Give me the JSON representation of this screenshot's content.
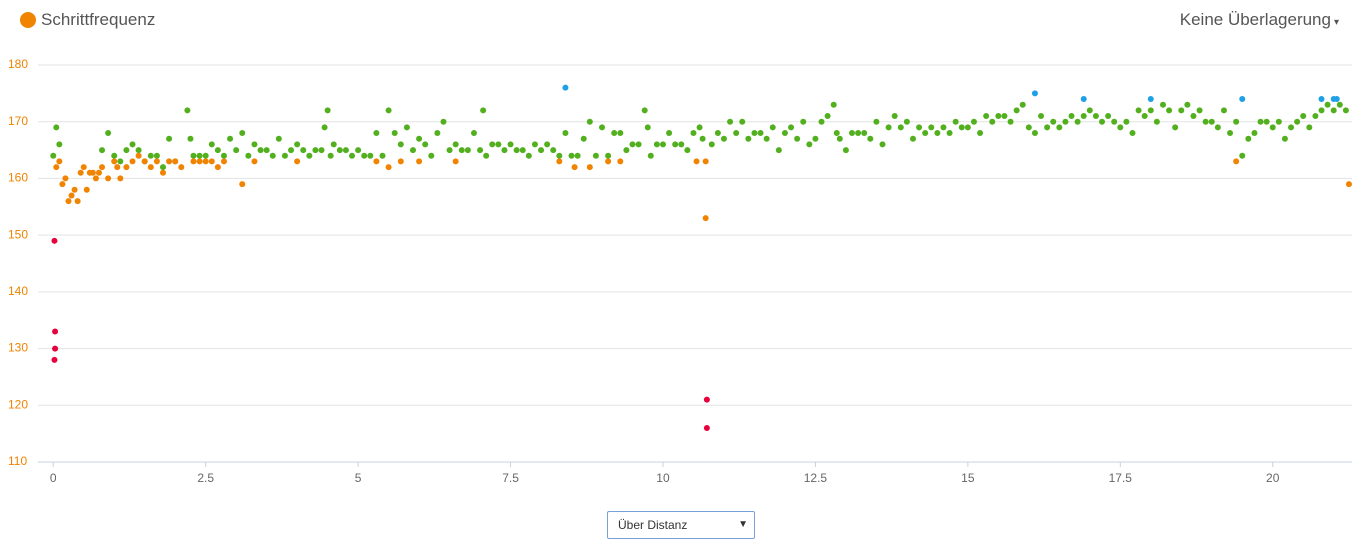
{
  "chart_data": {
    "type": "scatter",
    "legend": {
      "label": "Schrittfrequenz",
      "color": "#f08300"
    },
    "overlay_menu": "Keine Überlagerung",
    "x_mode_select": "Über Distanz",
    "xlim": [
      -0.25,
      21.3
    ],
    "ylim": [
      110,
      180
    ],
    "xticks": [
      0,
      2.5,
      5,
      7.5,
      10,
      12.5,
      15,
      17.5,
      20
    ],
    "yticks": [
      110,
      120,
      130,
      140,
      150,
      160,
      170,
      180
    ],
    "grid": true,
    "series": [
      {
        "color": "#52b01e",
        "x": [
          0,
          0.05,
          0.1,
          0.8,
          0.9,
          1.0,
          1.1,
          1.2,
          1.3,
          1.4,
          1.5,
          1.6,
          1.7,
          1.8,
          1.9,
          2.0,
          2.2,
          2.25,
          2.3,
          2.4,
          2.5,
          2.6,
          2.7,
          2.8,
          2.9,
          3.0,
          3.1,
          3.2,
          3.3,
          3.4,
          3.5,
          3.6,
          3.7,
          3.8,
          3.9,
          4.0,
          4.1,
          4.2,
          4.3,
          4.4,
          4.45,
          4.5,
          4.55,
          4.6,
          4.7,
          4.8,
          4.9,
          5.0,
          5.1,
          5.2,
          5.3,
          5.4,
          5.5,
          5.6,
          5.7,
          5.8,
          5.9,
          6.0,
          6.1,
          6.2,
          6.3,
          6.4,
          6.5,
          6.6,
          6.7,
          6.8,
          6.9,
          7.0,
          7.05,
          7.1,
          7.2,
          7.3,
          7.4,
          7.5,
          7.6,
          7.7,
          7.8,
          7.9,
          8.0,
          8.1,
          8.2,
          8.3,
          8.4,
          8.5,
          8.6,
          8.7,
          8.8,
          8.9,
          9.0,
          9.1,
          9.2,
          9.3,
          9.4,
          9.5,
          9.6,
          9.7,
          9.75,
          9.8,
          9.9,
          10.0,
          10.1,
          10.2,
          10.3,
          10.4,
          10.5,
          10.6,
          10.65,
          10.8,
          10.9,
          11.0,
          11.1,
          11.2,
          11.3,
          11.4,
          11.5,
          11.6,
          11.7,
          11.8,
          11.9,
          12.0,
          12.1,
          12.2,
          12.3,
          12.4,
          12.5,
          12.6,
          12.7,
          12.8,
          12.85,
          12.9,
          13.0,
          13.1,
          13.2,
          13.3,
          13.4,
          13.5,
          13.6,
          13.7,
          13.8,
          13.9,
          14.0,
          14.1,
          14.2,
          14.3,
          14.4,
          14.5,
          14.6,
          14.7,
          14.8,
          14.9,
          15.0,
          15.1,
          15.2,
          15.3,
          15.4,
          15.5,
          15.6,
          15.7,
          15.8,
          15.9,
          16.0,
          16.1,
          16.2,
          16.3,
          16.4,
          16.5,
          16.6,
          16.7,
          16.8,
          16.9,
          17.0,
          17.1,
          17.2,
          17.3,
          17.4,
          17.5,
          17.6,
          17.7,
          17.8,
          17.9,
          18.0,
          18.1,
          18.2,
          18.3,
          18.4,
          18.5,
          18.6,
          18.7,
          18.8,
          18.9,
          19.0,
          19.1,
          19.2,
          19.3,
          19.4,
          19.5,
          19.6,
          19.7,
          19.8,
          19.9,
          20.0,
          20.1,
          20.2,
          20.3,
          20.4,
          20.5,
          20.6,
          20.7,
          20.8,
          20.9,
          21.0,
          21.1,
          21.2
        ],
        "values": [
          164,
          169,
          166,
          165,
          168,
          164,
          163,
          165,
          166,
          165,
          163,
          164,
          164,
          162,
          167,
          163,
          172,
          167,
          164,
          164,
          164,
          166,
          165,
          164,
          167,
          165,
          168,
          164,
          166,
          165,
          165,
          164,
          167,
          164,
          165,
          166,
          165,
          164,
          165,
          165,
          169,
          172,
          164,
          166,
          165,
          165,
          164,
          165,
          164,
          164,
          168,
          164,
          172,
          168,
          166,
          169,
          165,
          167,
          166,
          164,
          168,
          170,
          165,
          166,
          165,
          165,
          168,
          165,
          172,
          164,
          166,
          166,
          165,
          166,
          165,
          165,
          164,
          166,
          165,
          166,
          165,
          164,
          168,
          164,
          164,
          167,
          170,
          164,
          169,
          164,
          168,
          168,
          165,
          166,
          166,
          172,
          169,
          164,
          166,
          166,
          168,
          166,
          166,
          165,
          168,
          169,
          167,
          166,
          168,
          167,
          170,
          168,
          170,
          167,
          168,
          168,
          167,
          169,
          165,
          168,
          169,
          167,
          170,
          166,
          167,
          170,
          171,
          173,
          168,
          167,
          165,
          168,
          168,
          168,
          167,
          170,
          166,
          169,
          171,
          169,
          170,
          167,
          169,
          168,
          169,
          168,
          169,
          168,
          170,
          169,
          169,
          170,
          168,
          171,
          170,
          171,
          171,
          170,
          172,
          173,
          169,
          168,
          171,
          169,
          170,
          169,
          170,
          171,
          170,
          171,
          172,
          171,
          170,
          171,
          170,
          169,
          170,
          168,
          172,
          171,
          172,
          170,
          173,
          172,
          169,
          172,
          173,
          171,
          172,
          170,
          170,
          169,
          172,
          168,
          170,
          164,
          167,
          168,
          170,
          170,
          169,
          170,
          167,
          169,
          170,
          171,
          169,
          171,
          172,
          173,
          172,
          173,
          172
        ]
      },
      {
        "color": "#f08300",
        "x": [
          0.05,
          0.1,
          0.15,
          0.2,
          0.25,
          0.3,
          0.35,
          0.4,
          0.45,
          0.5,
          0.55,
          0.6,
          0.65,
          0.7,
          0.75,
          0.8,
          0.9,
          1.0,
          1.05,
          1.1,
          1.2,
          1.3,
          1.4,
          1.5,
          1.6,
          1.7,
          1.8,
          1.9,
          2.0,
          2.1,
          2.3,
          2.4,
          2.5,
          2.6,
          2.7,
          2.8,
          3.1,
          3.3,
          4.0,
          5.3,
          5.5,
          5.7,
          6.0,
          6.6,
          8.3,
          8.55,
          8.8,
          9.1,
          9.3,
          10.55,
          10.7,
          10.7,
          19.4,
          21.25
        ],
        "values": [
          162,
          163,
          159,
          160,
          156,
          157,
          158,
          156,
          161,
          162,
          158,
          161,
          161,
          160,
          161,
          162,
          160,
          163,
          162,
          160,
          162,
          163,
          164,
          163,
          162,
          163,
          161,
          163,
          163,
          162,
          163,
          163,
          163,
          163,
          162,
          163,
          159,
          163,
          163,
          163,
          162,
          163,
          163,
          163,
          163,
          162,
          162,
          163,
          163,
          163,
          163,
          153,
          163,
          159
        ]
      },
      {
        "color": "#e8003c",
        "x": [
          0.02,
          0.03,
          0.03,
          0.02,
          10.72,
          10.72
        ],
        "values": [
          149,
          133,
          130,
          128,
          121,
          116
        ]
      },
      {
        "color": "#1ea0e6",
        "x": [
          8.4,
          16.1,
          16.9,
          18.0,
          19.5,
          20.8,
          21.0,
          21.05
        ],
        "values": [
          176,
          175,
          174,
          174,
          174,
          174,
          174,
          174
        ]
      }
    ]
  }
}
